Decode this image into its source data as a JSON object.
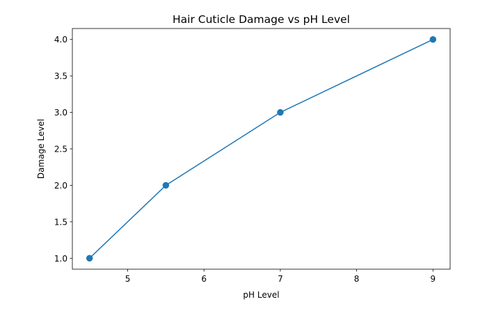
{
  "chart_data": {
    "type": "line",
    "title": "Hair Cuticle Damage vs pH Level",
    "xlabel": "pH Level",
    "ylabel": "Damage Level",
    "x": [
      4.5,
      5.5,
      7,
      9
    ],
    "series": [
      {
        "values": [
          1.0,
          2.0,
          3.0,
          4.0
        ]
      }
    ],
    "xlim": [
      4.275,
      9.225
    ],
    "ylim": [
      0.85,
      4.15
    ],
    "xticks": [
      5,
      6,
      7,
      8,
      9
    ],
    "xtick_labels": [
      "5",
      "6",
      "7",
      "8",
      "9"
    ],
    "yticks": [
      1.0,
      1.5,
      2.0,
      2.5,
      3.0,
      3.5,
      4.0
    ],
    "ytick_labels": [
      "1.0",
      "1.5",
      "2.0",
      "2.5",
      "3.0",
      "3.5",
      "4.0"
    ],
    "markers": true,
    "grid": false,
    "colors": {
      "series": "#1f77b4",
      "axes": "#000000",
      "background": "#ffffff"
    }
  }
}
